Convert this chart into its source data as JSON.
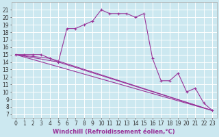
{
  "title": "",
  "xlabel": "Windchill (Refroidissement éolien,°C)",
  "xlabel_color": "#993399",
  "bg_color": "#cce8f0",
  "grid_color": "#ffffff",
  "line_color": "#993399",
  "marker": "+",
  "x_ticks": [
    0,
    1,
    2,
    3,
    4,
    5,
    6,
    7,
    8,
    9,
    10,
    11,
    12,
    13,
    14,
    15,
    16,
    17,
    18,
    19,
    20,
    21,
    22,
    23
  ],
  "y_ticks": [
    7,
    8,
    9,
    10,
    11,
    12,
    13,
    14,
    15,
    16,
    17,
    18,
    19,
    20,
    21
  ],
  "ylim": [
    6.5,
    22.0
  ],
  "xlim": [
    -0.5,
    23.5
  ],
  "main_line": {
    "x": [
      0,
      1,
      2,
      3,
      4,
      5,
      6,
      7,
      8,
      9,
      10,
      11,
      12,
      13,
      14,
      15,
      16,
      17,
      18,
      19,
      20,
      21,
      22,
      23
    ],
    "y": [
      15,
      15,
      15,
      15,
      14.5,
      14,
      18.5,
      18.5,
      19,
      19.5,
      21,
      20.5,
      20.5,
      20.5,
      20,
      20.5,
      14.5,
      11.5,
      11.5,
      12.5,
      10,
      10.5,
      8.5,
      7.5
    ]
  },
  "trend_lines": [
    {
      "x": [
        0,
        23
      ],
      "y": [
        15,
        7.5
      ]
    },
    {
      "x": [
        0,
        4,
        23
      ],
      "y": [
        15,
        14.5,
        7.5
      ]
    },
    {
      "x": [
        0,
        5,
        23
      ],
      "y": [
        15,
        14.0,
        7.5
      ]
    }
  ],
  "tick_fontsize": 5.5,
  "xlabel_fontsize": 6.0
}
